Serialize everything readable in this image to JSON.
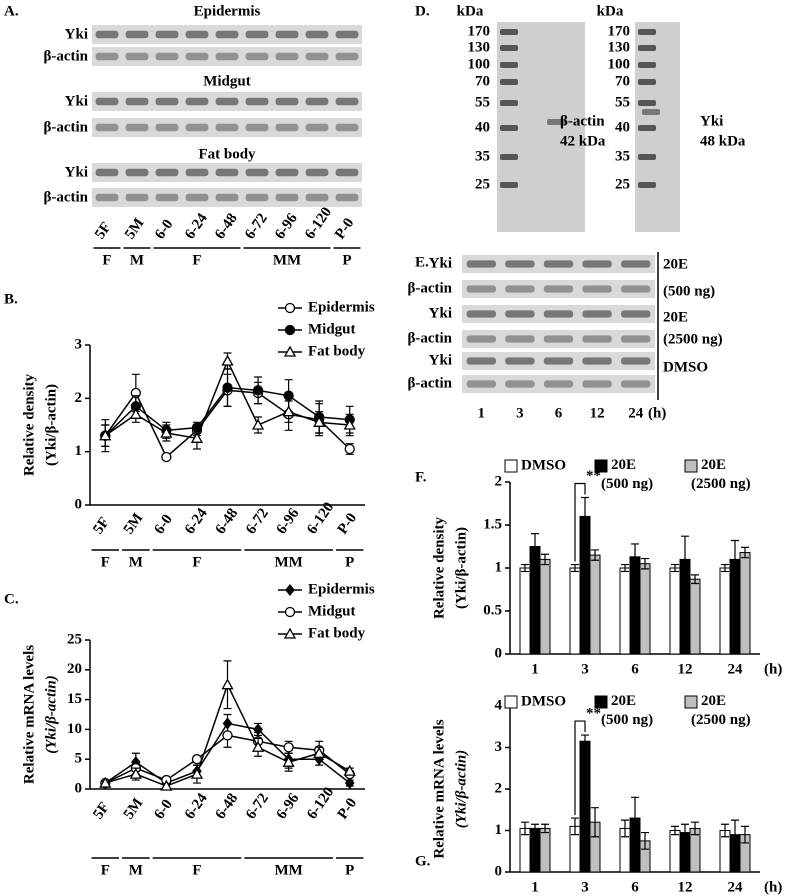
{
  "panel_labels": {
    "a": "A.",
    "b": "B.",
    "c": "C.",
    "d": "D.",
    "e": "E.",
    "f": "F.",
    "g": "G."
  },
  "blot_a": {
    "tissues": [
      "Epidermis",
      "Midgut",
      "Fat body"
    ],
    "rows": [
      "Yki",
      "β-actin"
    ],
    "lanes": [
      "5F",
      "5M",
      "6-0",
      "6-24",
      "6-48",
      "6-72",
      "6-96",
      "6-120",
      "P-0"
    ],
    "groups": [
      "F",
      "M",
      "F",
      "MM",
      "P"
    ]
  },
  "blot_d": {
    "gels": [
      {
        "unit": "kDa",
        "markers": [
          170,
          130,
          100,
          70,
          55,
          40,
          35,
          25
        ],
        "band": "β-actin",
        "size": "42 kDa"
      },
      {
        "unit": "kDa",
        "markers": [
          170,
          130,
          100,
          70,
          55,
          40,
          35,
          25
        ],
        "band": "Yki",
        "size": "48 kDa"
      }
    ]
  },
  "blot_e": {
    "rows": [
      "Yki",
      "β-actin"
    ],
    "treatments": [
      [
        "20E",
        "(500 ng)"
      ],
      [
        "20E",
        "(2500 ng)"
      ],
      [
        "DMSO"
      ]
    ],
    "lanes": [
      "1",
      "3",
      "6",
      "12",
      "24"
    ],
    "unit": "(h)"
  },
  "chart_data": [
    {
      "type": "line",
      "ylabel": [
        "Relative density",
        "(Yki/β-actin)"
      ],
      "ylabel_italic": false,
      "categories": [
        "5F",
        "5M",
        "6-0",
        "6-24",
        "6-48",
        "6-72",
        "6-96",
        "6-120",
        "P-0"
      ],
      "groups": [
        "F",
        "M",
        "F",
        "MM",
        "P"
      ],
      "ylim": [
        0,
        3
      ],
      "yticks": [
        0,
        1,
        2,
        3
      ],
      "series": [
        {
          "name": "Epidermis",
          "color": "#000000",
          "marker": "open-circle",
          "values": [
            1.3,
            2.1,
            0.9,
            1.4,
            2.15,
            2.1,
            1.7,
            1.6,
            1.05
          ],
          "errors": [
            0.2,
            0.35,
            0.05,
            0.1,
            0.3,
            0.2,
            0.3,
            0.3,
            0.1
          ]
        },
        {
          "name": "Midgut",
          "color": "#000000",
          "marker": "filled-circle",
          "values": [
            1.3,
            1.85,
            1.4,
            1.45,
            2.2,
            2.15,
            2.05,
            1.65,
            1.6
          ],
          "errors": [
            0.3,
            0.2,
            0.15,
            0.1,
            0.35,
            0.25,
            0.3,
            0.3,
            0.25
          ]
        },
        {
          "name": "Fat body",
          "color": "#000000",
          "marker": "open-triangle",
          "values": [
            1.3,
            1.7,
            1.35,
            1.25,
            2.7,
            1.5,
            1.75,
            1.55,
            1.5
          ],
          "errors": [
            0.2,
            0.15,
            0.15,
            0.2,
            0.15,
            0.15,
            0.2,
            0.2,
            0.2
          ]
        }
      ]
    },
    {
      "type": "line",
      "ylabel": [
        "Relative mRNA levels",
        "(Yki/β-actin)"
      ],
      "ylabel_italic": true,
      "categories": [
        "5F",
        "5M",
        "6-0",
        "6-24",
        "6-48",
        "6-72",
        "6-96",
        "6-120",
        "P-0"
      ],
      "groups": [
        "F",
        "M",
        "F",
        "MM",
        "P"
      ],
      "ylim": [
        0,
        25
      ],
      "yticks": [
        0,
        5,
        10,
        15,
        20,
        25
      ],
      "series": [
        {
          "name": "Epidermis",
          "color": "#000000",
          "marker": "filled-diamond",
          "values": [
            1,
            4.5,
            1,
            3,
            11,
            10,
            5,
            5,
            1
          ],
          "errors": [
            0.3,
            1.5,
            0.3,
            1,
            1.5,
            1,
            1.5,
            1,
            0.5
          ]
        },
        {
          "name": "Midgut",
          "color": "#000000",
          "marker": "open-circle",
          "values": [
            1,
            3.5,
            1.5,
            5,
            9,
            8,
            7,
            6.5,
            2.5
          ],
          "errors": [
            0.3,
            1,
            0.5,
            0.5,
            2,
            1.5,
            1,
            1.5,
            0.5
          ]
        },
        {
          "name": "Fat body",
          "color": "#000000",
          "marker": "open-triangle",
          "values": [
            1,
            2.5,
            0.5,
            2.5,
            17.5,
            7,
            4.5,
            6,
            3
          ],
          "errors": [
            0.3,
            1,
            0.3,
            1.5,
            4,
            1.5,
            1.5,
            1,
            0.5
          ]
        }
      ]
    },
    {
      "type": "bar",
      "ylabel": [
        "Relative density",
        "(Yki/β-actin)"
      ],
      "ylabel_italic": false,
      "categories": [
        "1",
        "3",
        "6",
        "12",
        "24"
      ],
      "xlabel": "(h)",
      "ylim": [
        0,
        2
      ],
      "yticks": [
        0,
        0.5,
        1,
        1.5,
        2
      ],
      "series": [
        {
          "name": "DMSO",
          "color": "#ffffff",
          "values": [
            1,
            1,
            1,
            1,
            1
          ],
          "errors": [
            0.04,
            0.04,
            0.04,
            0.04,
            0.04
          ]
        },
        {
          "name": "20E (500 ng)",
          "color": "#000000",
          "values": [
            1.25,
            1.6,
            1.13,
            1.1,
            1.1
          ],
          "errors": [
            0.15,
            0.22,
            0.15,
            0.27,
            0.22
          ]
        },
        {
          "name": "20E (2500 ng)",
          "color": "#bfbfbf",
          "values": [
            1.1,
            1.15,
            1.05,
            0.87,
            1.18
          ],
          "errors": [
            0.06,
            0.06,
            0.06,
            0.05,
            0.06
          ]
        }
      ],
      "annotations": [
        {
          "text": "**",
          "category": "3"
        }
      ]
    },
    {
      "type": "bar",
      "ylabel": [
        "Relative mRNA levels",
        "(Yki/β-actin)"
      ],
      "ylabel_italic": true,
      "categories": [
        "1",
        "3",
        "6",
        "12",
        "24"
      ],
      "xlabel": "(h)",
      "ylim": [
        0,
        4
      ],
      "yticks": [
        0,
        1,
        2,
        3,
        4
      ],
      "series": [
        {
          "name": "DMSO",
          "color": "#ffffff",
          "values": [
            1.05,
            1.1,
            1.05,
            1,
            1
          ],
          "errors": [
            0.15,
            0.2,
            0.2,
            0.1,
            0.15
          ]
        },
        {
          "name": "20E (500 ng)",
          "color": "#000000",
          "values": [
            1.05,
            3.15,
            1.3,
            0.95,
            0.9
          ],
          "errors": [
            0.1,
            0.15,
            0.5,
            0.2,
            0.35
          ]
        },
        {
          "name": "20E (2500 ng)",
          "color": "#bfbfbf",
          "values": [
            1.05,
            1.2,
            0.75,
            1.05,
            0.9
          ],
          "errors": [
            0.1,
            0.35,
            0.2,
            0.15,
            0.2
          ]
        }
      ],
      "annotations": [
        {
          "text": "**",
          "category": "3"
        }
      ]
    }
  ]
}
